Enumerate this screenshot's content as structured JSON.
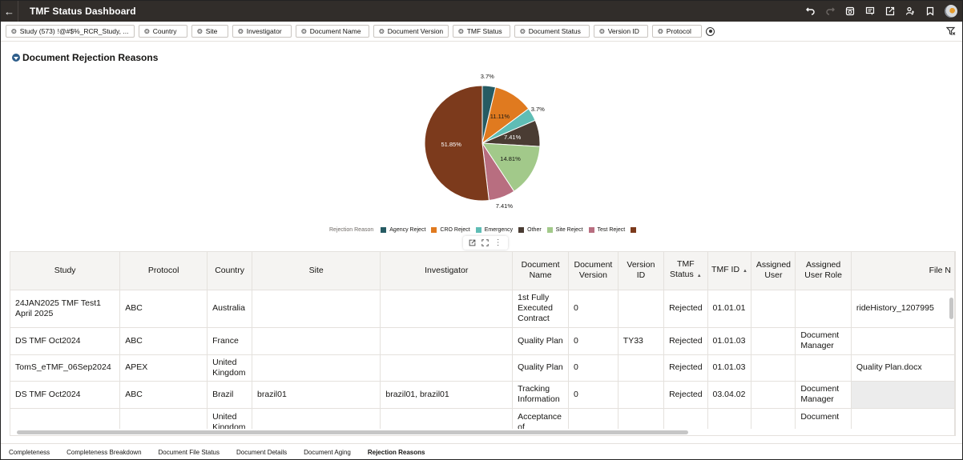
{
  "header": {
    "title": "TMF Status Dashboard",
    "back_icon": "arrow-left-icon",
    "actions": [
      "undo-icon",
      "redo-icon",
      "present-icon",
      "comment-icon",
      "export-icon",
      "share-user-icon",
      "bookmark-icon",
      "avatar"
    ]
  },
  "filters": [
    {
      "label": "Study (573)",
      "value": "!@#$%_RCR_Study, ..."
    },
    {
      "label": "Country",
      "value": ""
    },
    {
      "label": "Site",
      "value": ""
    },
    {
      "label": "Investigator",
      "value": ""
    },
    {
      "label": "Document Name",
      "value": ""
    },
    {
      "label": "Document Version",
      "value": ""
    },
    {
      "label": "TMF Status",
      "value": ""
    },
    {
      "label": "Document Status",
      "value": ""
    },
    {
      "label": "Version ID",
      "value": ""
    },
    {
      "label": "Protocol",
      "value": ""
    }
  ],
  "section": {
    "title": "Document Rejection Reasons"
  },
  "chart_data": {
    "type": "pie",
    "title": "Document Rejection Reasons",
    "legend_title": "Rejection Reason",
    "legend_position": "bottom",
    "categories": [
      "Agency Reject",
      "CRO Reject",
      "Emergency",
      "Other",
      "Site Reject",
      "Test Reject",
      ""
    ],
    "values": [
      3.7,
      11.11,
      3.7,
      7.41,
      14.81,
      7.41,
      51.85
    ],
    "labels": [
      "3.7%",
      "11.11%",
      "3.7%",
      "7.41%",
      "14.81%",
      "7.41%",
      "51.85%"
    ],
    "colors": [
      "#265b63",
      "#e07a1f",
      "#5fbdb5",
      "#4a3c33",
      "#a2c98a",
      "#b86e80",
      "#7c3a1c"
    ]
  },
  "viz_toolbar": [
    "export-icon",
    "fullscreen-icon",
    "more-icon"
  ],
  "table": {
    "columns": [
      "Study",
      "Protocol",
      "Country",
      "Site",
      "Investigator",
      "Document Name",
      "Document Version",
      "Version ID",
      "TMF Status",
      "TMF ID",
      "Assigned User",
      "Assigned User Role",
      "File N"
    ],
    "sorted_columns": [
      "TMF Status",
      "TMF ID"
    ],
    "rows": [
      [
        "24JAN2025 TMF Test1 April 2025",
        "ABC",
        "Australia",
        "",
        "",
        "1st Fully Executed Contract",
        "0",
        "",
        "Rejected",
        "01.01.01",
        "",
        "",
        "rideHistory_1207995"
      ],
      [
        "DS TMF Oct2024",
        "ABC",
        "France",
        "",
        "",
        "Quality Plan",
        "0",
        "TY33",
        "Rejected",
        "01.01.03",
        "",
        "Document Manager",
        ""
      ],
      [
        "TomS_eTMF_06Sep2024",
        "APEX",
        "United Kingdom",
        "",
        "",
        "Quality Plan",
        "0",
        "",
        "Rejected",
        "01.01.03",
        "",
        "",
        "Quality Plan.docx"
      ],
      [
        "DS TMF Oct2024",
        "ABC",
        "Brazil",
        "brazil01",
        "brazil01, brazil01",
        "Tracking Information",
        "0",
        "",
        "Rejected",
        "03.04.02",
        "",
        "Document Manager",
        ""
      ],
      [
        "",
        "",
        "United Kingdom",
        "",
        "",
        "Acceptance of",
        "",
        "",
        "",
        "",
        "",
        "Document",
        ""
      ]
    ]
  },
  "tabs": [
    {
      "label": "Completeness",
      "active": false
    },
    {
      "label": "Completeness Breakdown",
      "active": false
    },
    {
      "label": "Document File Status",
      "active": false
    },
    {
      "label": "Document Details",
      "active": false
    },
    {
      "label": "Document Aging",
      "active": false
    },
    {
      "label": "Rejection Reasons",
      "active": true
    }
  ]
}
